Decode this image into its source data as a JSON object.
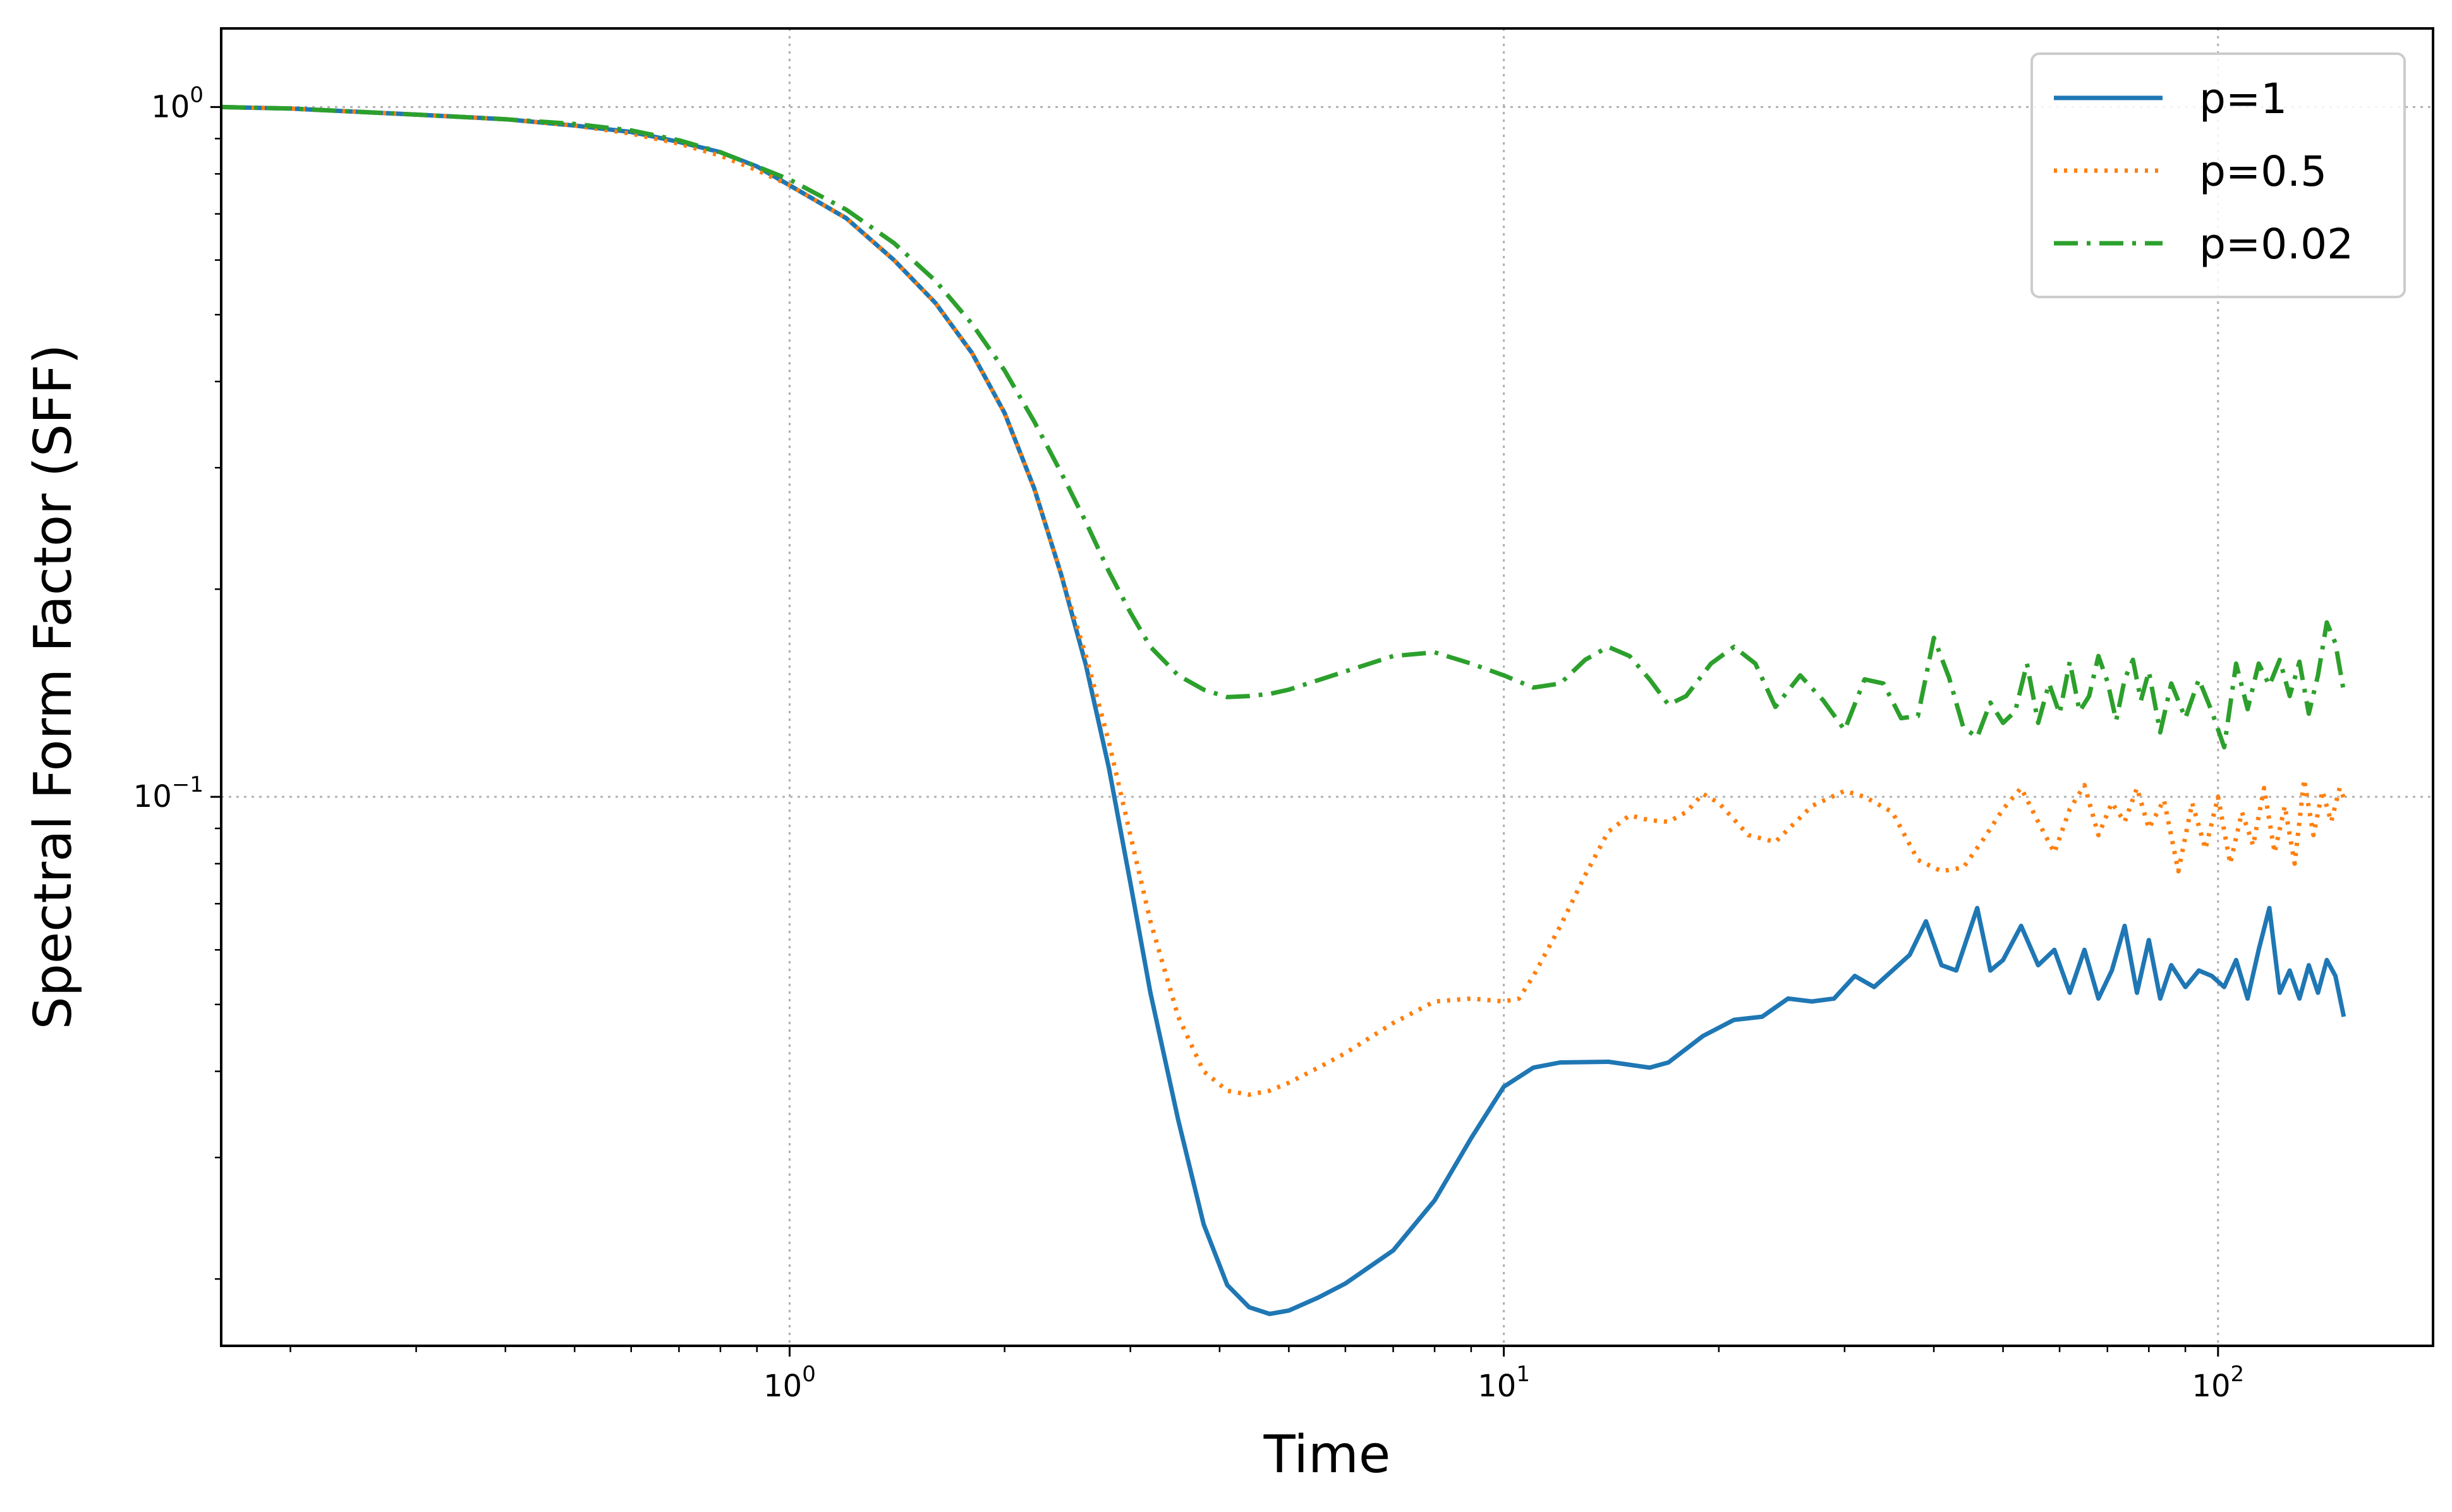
{
  "chart_data": {
    "type": "line",
    "title": "",
    "xlabel": "Time",
    "ylabel": "Spectral Form Factor (SFF)",
    "xscale": "log",
    "yscale": "log",
    "xlim": [
      0.16,
      200
    ],
    "ylim": [
      0.016,
      1.3
    ],
    "grid": true,
    "legend_position": "top-right",
    "x_ticks": [
      {
        "value": 1,
        "base": "10",
        "exp": "0"
      },
      {
        "value": 10,
        "base": "10",
        "exp": "1"
      },
      {
        "value": 100,
        "base": "10",
        "exp": "2"
      }
    ],
    "y_ticks": [
      {
        "value": 1,
        "base": "10",
        "exp": "0"
      },
      {
        "value": 0.1,
        "base": "10",
        "exp": "−1"
      }
    ],
    "series": [
      {
        "name": "p=1",
        "color": "#1f77b4",
        "dash": "solid",
        "points": [
          [
            0.16,
            1.0
          ],
          [
            0.2,
            0.995
          ],
          [
            0.3,
            0.975
          ],
          [
            0.4,
            0.96
          ],
          [
            0.5,
            0.94
          ],
          [
            0.6,
            0.92
          ],
          [
            0.7,
            0.89
          ],
          [
            0.8,
            0.86
          ],
          [
            0.9,
            0.82
          ],
          [
            1.0,
            0.77
          ],
          [
            1.2,
            0.69
          ],
          [
            1.4,
            0.6
          ],
          [
            1.6,
            0.52
          ],
          [
            1.8,
            0.44
          ],
          [
            2.0,
            0.36
          ],
          [
            2.2,
            0.28
          ],
          [
            2.4,
            0.21
          ],
          [
            2.6,
            0.155
          ],
          [
            2.8,
            0.11
          ],
          [
            3.0,
            0.075
          ],
          [
            3.2,
            0.052
          ],
          [
            3.5,
            0.034
          ],
          [
            3.8,
            0.024
          ],
          [
            4.1,
            0.0196
          ],
          [
            4.4,
            0.0182
          ],
          [
            4.7,
            0.0178
          ],
          [
            5.0,
            0.018
          ],
          [
            5.5,
            0.0188
          ],
          [
            6.0,
            0.0197
          ],
          [
            7.0,
            0.022
          ],
          [
            8.0,
            0.026
          ],
          [
            9.0,
            0.032
          ],
          [
            10.0,
            0.038
          ],
          [
            11.0,
            0.0405
          ],
          [
            12.0,
            0.0412
          ],
          [
            14.0,
            0.0413
          ],
          [
            16.0,
            0.0405
          ],
          [
            17.0,
            0.0412
          ],
          [
            19.0,
            0.045
          ],
          [
            21.0,
            0.0475
          ],
          [
            23.0,
            0.048
          ],
          [
            25.0,
            0.051
          ],
          [
            27.0,
            0.0505
          ],
          [
            29.0,
            0.051
          ],
          [
            31.0,
            0.055
          ],
          [
            33.0,
            0.053
          ],
          [
            35.0,
            0.056
          ],
          [
            37.0,
            0.059
          ],
          [
            39.0,
            0.066
          ],
          [
            41.0,
            0.057
          ],
          [
            43.0,
            0.056
          ],
          [
            46.0,
            0.069
          ],
          [
            48.0,
            0.056
          ],
          [
            50.0,
            0.058
          ],
          [
            53.0,
            0.065
          ],
          [
            56.0,
            0.057
          ],
          [
            59.0,
            0.06
          ],
          [
            62.0,
            0.052
          ],
          [
            65.0,
            0.06
          ],
          [
            68.0,
            0.051
          ],
          [
            71.0,
            0.056
          ],
          [
            74.0,
            0.065
          ],
          [
            77.0,
            0.052
          ],
          [
            80.0,
            0.062
          ],
          [
            83.0,
            0.051
          ],
          [
            86.0,
            0.057
          ],
          [
            90.0,
            0.053
          ],
          [
            94.0,
            0.056
          ],
          [
            98.0,
            0.055
          ],
          [
            102.0,
            0.053
          ],
          [
            106.0,
            0.058
          ],
          [
            110.0,
            0.051
          ],
          [
            114.0,
            0.06
          ],
          [
            118.0,
            0.069
          ],
          [
            122.0,
            0.052
          ],
          [
            126.0,
            0.056
          ],
          [
            130.0,
            0.051
          ],
          [
            134.0,
            0.057
          ],
          [
            138.0,
            0.052
          ],
          [
            142.0,
            0.058
          ],
          [
            146.0,
            0.055
          ],
          [
            150.0,
            0.048
          ]
        ]
      },
      {
        "name": "p=0.5",
        "color": "#ff7f0e",
        "dash": "dotted",
        "points": [
          [
            0.16,
            1.0
          ],
          [
            0.2,
            0.995
          ],
          [
            0.3,
            0.975
          ],
          [
            0.4,
            0.96
          ],
          [
            0.5,
            0.94
          ],
          [
            0.6,
            0.915
          ],
          [
            0.7,
            0.885
          ],
          [
            0.8,
            0.85
          ],
          [
            0.9,
            0.81
          ],
          [
            1.0,
            0.77
          ],
          [
            1.2,
            0.69
          ],
          [
            1.4,
            0.6
          ],
          [
            1.6,
            0.52
          ],
          [
            1.8,
            0.44
          ],
          [
            2.0,
            0.36
          ],
          [
            2.2,
            0.28
          ],
          [
            2.4,
            0.21
          ],
          [
            2.6,
            0.16
          ],
          [
            2.8,
            0.12
          ],
          [
            3.0,
            0.088
          ],
          [
            3.2,
            0.066
          ],
          [
            3.5,
            0.048
          ],
          [
            3.8,
            0.04
          ],
          [
            4.1,
            0.0375
          ],
          [
            4.4,
            0.037
          ],
          [
            4.7,
            0.0375
          ],
          [
            5.0,
            0.0385
          ],
          [
            5.5,
            0.0405
          ],
          [
            6.0,
            0.0425
          ],
          [
            7.0,
            0.047
          ],
          [
            8.0,
            0.0505
          ],
          [
            9.0,
            0.051
          ],
          [
            10.0,
            0.0505
          ],
          [
            10.5,
            0.051
          ],
          [
            11.0,
            0.055
          ],
          [
            12.0,
            0.065
          ],
          [
            13.0,
            0.077
          ],
          [
            14.0,
            0.089
          ],
          [
            15.0,
            0.094
          ],
          [
            16.0,
            0.0925
          ],
          [
            17.0,
            0.092
          ],
          [
            18.0,
            0.095
          ],
          [
            19.0,
            0.101
          ],
          [
            20.0,
            0.098
          ],
          [
            22.0,
            0.088
          ],
          [
            24.0,
            0.086
          ],
          [
            27.0,
            0.097
          ],
          [
            30.0,
            0.102
          ],
          [
            32.0,
            0.1
          ],
          [
            35.0,
            0.095
          ],
          [
            38.0,
            0.081
          ],
          [
            41.0,
            0.078
          ],
          [
            44.0,
            0.079
          ],
          [
            47.0,
            0.087
          ],
          [
            50.0,
            0.096
          ],
          [
            53.0,
            0.103
          ],
          [
            56.0,
            0.092
          ],
          [
            59.0,
            0.083
          ],
          [
            62.0,
            0.096
          ],
          [
            65.0,
            0.104
          ],
          [
            68.0,
            0.088
          ],
          [
            71.0,
            0.098
          ],
          [
            74.0,
            0.092
          ],
          [
            77.0,
            0.103
          ],
          [
            80.0,
            0.09
          ],
          [
            84.0,
            0.099
          ],
          [
            88.0,
            0.078
          ],
          [
            92.0,
            0.098
          ],
          [
            96.0,
            0.084
          ],
          [
            100.0,
            0.1
          ],
          [
            104.0,
            0.08
          ],
          [
            108.0,
            0.095
          ],
          [
            112.0,
            0.085
          ],
          [
            116.0,
            0.103
          ],
          [
            120.0,
            0.083
          ],
          [
            124.0,
            0.097
          ],
          [
            128.0,
            0.08
          ],
          [
            132.0,
            0.106
          ],
          [
            136.0,
            0.088
          ],
          [
            140.0,
            0.102
          ],
          [
            144.0,
            0.092
          ],
          [
            148.0,
            0.103
          ],
          [
            151.0,
            0.098
          ]
        ]
      },
      {
        "name": "p=0.02",
        "color": "#2ca02c",
        "dash": "dashdot",
        "points": [
          [
            0.16,
            1.0
          ],
          [
            0.2,
            0.995
          ],
          [
            0.3,
            0.975
          ],
          [
            0.4,
            0.96
          ],
          [
            0.5,
            0.945
          ],
          [
            0.6,
            0.925
          ],
          [
            0.7,
            0.895
          ],
          [
            0.8,
            0.86
          ],
          [
            0.9,
            0.82
          ],
          [
            1.0,
            0.785
          ],
          [
            1.2,
            0.71
          ],
          [
            1.4,
            0.635
          ],
          [
            1.6,
            0.56
          ],
          [
            1.8,
            0.485
          ],
          [
            2.0,
            0.415
          ],
          [
            2.2,
            0.35
          ],
          [
            2.4,
            0.295
          ],
          [
            2.6,
            0.25
          ],
          [
            2.8,
            0.212
          ],
          [
            3.0,
            0.185
          ],
          [
            3.2,
            0.165
          ],
          [
            3.5,
            0.15
          ],
          [
            3.8,
            0.143
          ],
          [
            4.1,
            0.1395
          ],
          [
            4.4,
            0.14
          ],
          [
            4.7,
            0.141
          ],
          [
            5.0,
            0.143
          ],
          [
            6.0,
            0.152
          ],
          [
            7.0,
            0.16
          ],
          [
            8.0,
            0.162
          ],
          [
            9.0,
            0.156
          ],
          [
            10.0,
            0.15
          ],
          [
            11.0,
            0.144
          ],
          [
            12.0,
            0.146
          ],
          [
            13.0,
            0.158
          ],
          [
            14.0,
            0.165
          ],
          [
            15.0,
            0.16
          ],
          [
            16.0,
            0.148
          ],
          [
            17.0,
            0.136
          ],
          [
            18.0,
            0.14
          ],
          [
            19.5,
            0.156
          ],
          [
            21.0,
            0.165
          ],
          [
            22.5,
            0.156
          ],
          [
            24.0,
            0.135
          ],
          [
            26.0,
            0.15
          ],
          [
            28.0,
            0.138
          ],
          [
            30.0,
            0.125
          ],
          [
            32.0,
            0.148
          ],
          [
            34.0,
            0.146
          ],
          [
            36.0,
            0.13
          ],
          [
            38.0,
            0.131
          ],
          [
            40.0,
            0.17
          ],
          [
            42.0,
            0.149
          ],
          [
            44.0,
            0.126
          ],
          [
            46.0,
            0.122
          ],
          [
            48.0,
            0.137
          ],
          [
            50.0,
            0.128
          ],
          [
            52.0,
            0.133
          ],
          [
            54.0,
            0.156
          ],
          [
            56.0,
            0.128
          ],
          [
            58.0,
            0.146
          ],
          [
            60.0,
            0.132
          ],
          [
            62.0,
            0.157
          ],
          [
            64.0,
            0.133
          ],
          [
            66.0,
            0.14
          ],
          [
            68.0,
            0.16
          ],
          [
            70.0,
            0.147
          ],
          [
            72.0,
            0.129
          ],
          [
            74.0,
            0.148
          ],
          [
            76.0,
            0.158
          ],
          [
            78.0,
            0.138
          ],
          [
            80.0,
            0.152
          ],
          [
            83.0,
            0.124
          ],
          [
            86.0,
            0.146
          ],
          [
            90.0,
            0.13
          ],
          [
            94.0,
            0.148
          ],
          [
            98.0,
            0.133
          ],
          [
            102.0,
            0.118
          ],
          [
            106.0,
            0.156
          ],
          [
            110.0,
            0.134
          ],
          [
            114.0,
            0.156
          ],
          [
            118.0,
            0.145
          ],
          [
            122.0,
            0.158
          ],
          [
            126.0,
            0.14
          ],
          [
            130.0,
            0.157
          ],
          [
            134.0,
            0.132
          ],
          [
            138.0,
            0.15
          ],
          [
            142.0,
            0.179
          ],
          [
            146.0,
            0.167
          ],
          [
            150.0,
            0.142
          ]
        ]
      }
    ]
  }
}
